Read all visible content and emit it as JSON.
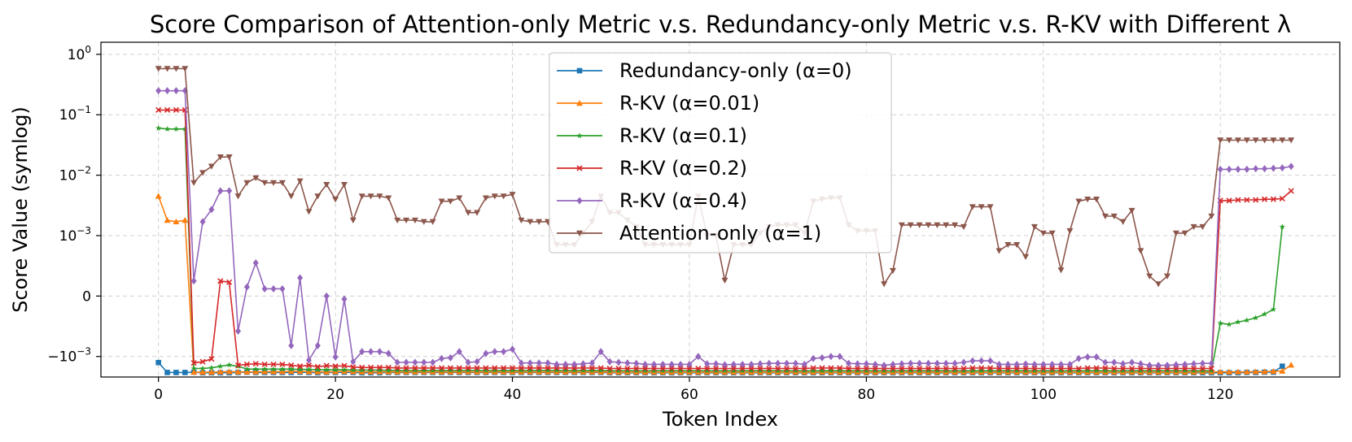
{
  "chart_data": {
    "type": "line",
    "title": "Score Comparison of Attention-only Metric v.s. Redundancy-only Metric v.s. R-KV with Different λ",
    "xlabel": "Token Index",
    "ylabel": "Score Value (symlog)",
    "yscale": "symlog",
    "linthresh": 0.001,
    "xlim": [
      -6.5,
      133.5
    ],
    "x_ticks": [
      0,
      20,
      40,
      60,
      80,
      100,
      120
    ],
    "y_ticks": [
      {
        "value": 1,
        "label": "10",
        "exp": "0"
      },
      {
        "value": 0.1,
        "label": "10",
        "exp": "−1"
      },
      {
        "value": 0.01,
        "label": "10",
        "exp": "−2"
      },
      {
        "value": 0.001,
        "label": "10",
        "exp": "−3"
      },
      {
        "value": 0,
        "label": "0",
        "exp": ""
      },
      {
        "value": -0.001,
        "label": "−10",
        "exp": "−3"
      }
    ],
    "grid": true,
    "legend_position": "top-center",
    "series": [
      {
        "name": "Redundancy-only (α=0)",
        "color": "#1f77b4",
        "marker": "square",
        "values": [
          -0.00126,
          -0.00184,
          -0.00184,
          -0.00184,
          -0.00182,
          -0.00186,
          -0.00186,
          -0.00186,
          -0.00186,
          -0.00184,
          -0.00182,
          -0.00184,
          -0.00184,
          -0.00184,
          -0.00184,
          -0.00184,
          -0.00182,
          -0.00184,
          -0.00186,
          -0.00184,
          -0.00184,
          -0.00182,
          -0.00184,
          -0.00186,
          -0.00186,
          -0.00186,
          -0.00184,
          -0.00184,
          -0.00184,
          -0.00184,
          -0.00184,
          -0.00184,
          -0.00184,
          -0.00184,
          -0.00184,
          -0.00184,
          -0.00184,
          -0.00184,
          -0.00184,
          -0.00184,
          -0.00184,
          -0.00184,
          -0.00184,
          -0.00184,
          -0.00184,
          -0.00184,
          -0.00184,
          -0.00184,
          -0.00184,
          -0.00184,
          -0.00184,
          -0.00186,
          -0.00186,
          -0.00186,
          -0.00186,
          -0.00186,
          -0.00186,
          -0.00186,
          -0.00186,
          -0.00186,
          -0.00186,
          -0.00186,
          -0.00186,
          -0.00186,
          -0.00186,
          -0.00186,
          -0.00186,
          -0.00186,
          -0.00186,
          -0.00186,
          -0.00186,
          -0.00186,
          -0.00186,
          -0.00186,
          -0.00186,
          -0.00186,
          -0.00186,
          -0.00186,
          -0.00186,
          -0.00186,
          -0.00186,
          -0.00186,
          -0.00186,
          -0.00186,
          -0.00186,
          -0.00186,
          -0.00186,
          -0.00186,
          -0.00186,
          -0.00186,
          -0.00186,
          -0.00186,
          -0.00186,
          -0.00186,
          -0.00186,
          -0.00186,
          -0.00186,
          -0.00186,
          -0.00186,
          -0.00186,
          -0.00186,
          -0.00186,
          -0.00186,
          -0.00186,
          -0.00186,
          -0.00186,
          -0.00186,
          -0.00186,
          -0.00186,
          -0.00186,
          -0.00186,
          -0.00186,
          -0.00186,
          -0.00186,
          -0.00186,
          -0.00186,
          -0.00186,
          -0.00186,
          -0.00186,
          -0.00186,
          -0.00186,
          -0.00186,
          -0.00186,
          -0.00184,
          -0.00184,
          -0.00182,
          -0.00182,
          -0.00145
        ]
      },
      {
        "name": "R-KV (α=0.01)",
        "color": "#ff7f0e",
        "marker": "triangle-up",
        "values": [
          0.0045,
          0.0018,
          0.0017,
          0.0018,
          -0.00182,
          -0.00182,
          -0.00182,
          -0.0018,
          -0.00178,
          -0.0018,
          -0.0018,
          -0.0018,
          -0.00178,
          -0.00178,
          -0.00178,
          -0.00176,
          -0.00176,
          -0.00178,
          -0.0018,
          -0.0018,
          -0.00178,
          -0.00176,
          -0.00178,
          -0.0018,
          -0.0018,
          -0.0018,
          -0.0018,
          -0.0018,
          -0.0018,
          -0.0018,
          -0.0018,
          -0.0018,
          -0.0018,
          -0.0018,
          -0.0018,
          -0.0018,
          -0.0018,
          -0.0018,
          -0.0018,
          -0.0018,
          -0.0018,
          -0.0018,
          -0.0018,
          -0.0018,
          -0.0018,
          -0.0018,
          -0.0018,
          -0.0018,
          -0.0018,
          -0.0018,
          -0.0018,
          -0.00182,
          -0.00182,
          -0.00182,
          -0.00182,
          -0.00182,
          -0.00182,
          -0.00182,
          -0.00182,
          -0.00182,
          -0.00182,
          -0.00182,
          -0.00182,
          -0.00182,
          -0.00182,
          -0.00182,
          -0.00182,
          -0.00182,
          -0.00182,
          -0.00182,
          -0.00182,
          -0.00182,
          -0.00182,
          -0.00182,
          -0.00182,
          -0.00182,
          -0.00182,
          -0.00182,
          -0.00182,
          -0.00182,
          -0.00182,
          -0.00182,
          -0.00182,
          -0.00182,
          -0.00182,
          -0.00182,
          -0.00182,
          -0.00182,
          -0.00182,
          -0.00182,
          -0.00182,
          -0.00182,
          -0.00182,
          -0.00182,
          -0.00182,
          -0.00182,
          -0.00182,
          -0.00182,
          -0.00182,
          -0.00182,
          -0.00182,
          -0.00182,
          -0.00182,
          -0.00182,
          -0.00182,
          -0.00182,
          -0.00182,
          -0.00182,
          -0.00182,
          -0.00182,
          -0.00182,
          -0.00182,
          -0.00182,
          -0.00182,
          -0.00182,
          -0.00182,
          -0.00182,
          -0.00182,
          -0.0018,
          -0.0018,
          -0.0018,
          -0.0018,
          -0.0018,
          -0.0018,
          -0.00178,
          -0.00178,
          -0.00176,
          -0.00174,
          -0.00138
        ]
      },
      {
        "name": "R-KV (α=0.1)",
        "color": "#2ca02c",
        "marker": "star",
        "values": [
          0.06,
          0.058,
          0.058,
          0.058,
          -0.00158,
          -0.00158,
          -0.00154,
          -0.00145,
          -0.00138,
          -0.00145,
          -0.00162,
          -0.00162,
          -0.00162,
          -0.00162,
          -0.00162,
          -0.00162,
          -0.00164,
          -0.00164,
          -0.00166,
          -0.00166,
          -0.00166,
          -0.00166,
          -0.00168,
          -0.00168,
          -0.00168,
          -0.00168,
          -0.0017,
          -0.0017,
          -0.0017,
          -0.0017,
          -0.0017,
          -0.0017,
          -0.0017,
          -0.0017,
          -0.0017,
          -0.0017,
          -0.0017,
          -0.0017,
          -0.0017,
          -0.0017,
          -0.0017,
          -0.0017,
          -0.0017,
          -0.0017,
          -0.0017,
          -0.0017,
          -0.0017,
          -0.0017,
          -0.0017,
          -0.0017,
          -0.0017,
          -0.00172,
          -0.00172,
          -0.00172,
          -0.00172,
          -0.00172,
          -0.00172,
          -0.00172,
          -0.00172,
          -0.00172,
          -0.00172,
          -0.00172,
          -0.00172,
          -0.00172,
          -0.00172,
          -0.00172,
          -0.00172,
          -0.00172,
          -0.00172,
          -0.00172,
          -0.00172,
          -0.00172,
          -0.00172,
          -0.00172,
          -0.00172,
          -0.00172,
          -0.00172,
          -0.00172,
          -0.00172,
          -0.00172,
          -0.00172,
          -0.00172,
          -0.00172,
          -0.00172,
          -0.00172,
          -0.00172,
          -0.00172,
          -0.00172,
          -0.00172,
          -0.00172,
          -0.00172,
          -0.00172,
          -0.00172,
          -0.00172,
          -0.00172,
          -0.00172,
          -0.00172,
          -0.00172,
          -0.00172,
          -0.00172,
          -0.00172,
          -0.00172,
          -0.00172,
          -0.00172,
          -0.00172,
          -0.00172,
          -0.00172,
          -0.00172,
          -0.00172,
          -0.00172,
          -0.00172,
          -0.00172,
          -0.00172,
          -0.00172,
          -0.00172,
          -0.00172,
          -0.00172,
          -0.00172,
          -0.00172,
          -0.00172,
          -0.00045,
          -0.00047,
          -0.00043,
          -0.0004,
          -0.00036,
          -0.0003,
          -0.00022,
          0.0014
        ]
      },
      {
        "name": "R-KV (α=0.2)",
        "color": "#d62728",
        "marker": "x",
        "values": [
          0.12,
          0.12,
          0.12,
          0.12,
          -0.00128,
          -0.00122,
          -0.0011,
          0.00025,
          0.00023,
          -0.0014,
          -0.00135,
          -0.00132,
          -0.00135,
          -0.00135,
          -0.00135,
          -0.0014,
          -0.00145,
          -0.0014,
          -0.00148,
          -0.00142,
          -0.00145,
          -0.00142,
          -0.0015,
          -0.00152,
          -0.00152,
          -0.00152,
          -0.00152,
          -0.00155,
          -0.00155,
          -0.00155,
          -0.00155,
          -0.00155,
          -0.00155,
          -0.00155,
          -0.00155,
          -0.00155,
          -0.00155,
          -0.00155,
          -0.00155,
          -0.00155,
          -0.00155,
          -0.00155,
          -0.00155,
          -0.00155,
          -0.00155,
          -0.00155,
          -0.00155,
          -0.00155,
          -0.00155,
          -0.00155,
          -0.00155,
          -0.00158,
          -0.00158,
          -0.00158,
          -0.00158,
          -0.00158,
          -0.00158,
          -0.00158,
          -0.00158,
          -0.00158,
          -0.00158,
          -0.00158,
          -0.00158,
          -0.00158,
          -0.00158,
          -0.00158,
          -0.00158,
          -0.00158,
          -0.00158,
          -0.00158,
          -0.00158,
          -0.00158,
          -0.00158,
          -0.00158,
          -0.00155,
          -0.00155,
          -0.00155,
          -0.00155,
          -0.00158,
          -0.00158,
          -0.00158,
          -0.00158,
          -0.00158,
          -0.00158,
          -0.00158,
          -0.00158,
          -0.00158,
          -0.00158,
          -0.00158,
          -0.00158,
          -0.00158,
          -0.00158,
          -0.00155,
          -0.00155,
          -0.00155,
          -0.00158,
          -0.00158,
          -0.00158,
          -0.00158,
          -0.00158,
          -0.00158,
          -0.00158,
          -0.00158,
          -0.00158,
          -0.00158,
          -0.00155,
          -0.00155,
          -0.00155,
          -0.00158,
          -0.00158,
          -0.00158,
          -0.00158,
          -0.00158,
          -0.00158,
          -0.00158,
          -0.00158,
          -0.00158,
          -0.00158,
          -0.00158,
          -0.00158,
          0.0038,
          0.0038,
          0.0039,
          0.0039,
          0.0039,
          0.004,
          0.004,
          0.0041,
          0.0055
        ]
      },
      {
        "name": "R-KV (α=0.4)",
        "color": "#9467bd",
        "marker": "diamond",
        "values": [
          0.25,
          0.25,
          0.25,
          0.25,
          0.00025,
          0.0017,
          0.0027,
          0.0055,
          0.0055,
          -0.00058,
          0.00015,
          0.00055,
          0.00012,
          0.00012,
          0.00012,
          -0.00082,
          0.0003,
          -0.00115,
          -0.00082,
          0.0,
          -0.00102,
          -5e-05,
          -0.00122,
          -0.00092,
          -0.00092,
          -0.00092,
          -0.00095,
          -0.00125,
          -0.00125,
          -0.00125,
          -0.00125,
          -0.00125,
          -0.00108,
          -0.00105,
          -0.00092,
          -0.00125,
          -0.00122,
          -0.00095,
          -0.00092,
          -0.00092,
          -0.00088,
          -0.00128,
          -0.00128,
          -0.00128,
          -0.00128,
          -0.00135,
          -0.00135,
          -0.00135,
          -0.00132,
          -0.00128,
          -0.00092,
          -0.00122,
          -0.00125,
          -0.00128,
          -0.0013,
          -0.00135,
          -0.00135,
          -0.00135,
          -0.00135,
          -0.00135,
          -0.00135,
          -0.001,
          -0.00132,
          -0.00132,
          -0.00137,
          -0.00135,
          -0.00135,
          -0.00135,
          -0.00132,
          -0.0013,
          -0.0013,
          -0.0013,
          -0.0013,
          -0.00135,
          -0.00108,
          -0.00105,
          -0.001,
          -0.001,
          -0.0013,
          -0.00132,
          -0.00132,
          -0.00135,
          -0.0014,
          -0.00135,
          -0.00132,
          -0.0013,
          -0.0013,
          -0.0013,
          -0.0013,
          -0.0013,
          -0.0013,
          -0.00125,
          -0.00118,
          -0.00118,
          -0.00118,
          -0.00135,
          -0.00135,
          -0.00135,
          -0.00133,
          -0.00135,
          -0.00135,
          -0.00135,
          -0.00135,
          -0.00135,
          -0.00108,
          -0.00102,
          -0.00102,
          -0.00125,
          -0.00125,
          -0.00132,
          -0.00125,
          -0.00132,
          -0.0014,
          -0.0014,
          -0.0014,
          -0.00137,
          -0.00135,
          -0.00132,
          -0.0013,
          -0.0013,
          0.0125,
          0.0125,
          0.0125,
          0.0125,
          0.0128,
          0.0128,
          0.013,
          0.0132,
          0.014
        ]
      },
      {
        "name": "Attention-only (α=1)",
        "color": "#8c564b",
        "marker": "triangle-down",
        "values": [
          0.58,
          0.58,
          0.58,
          0.58,
          0.0075,
          0.011,
          0.014,
          0.02,
          0.02,
          0.0045,
          0.0075,
          0.009,
          0.0075,
          0.0075,
          0.0075,
          0.0045,
          0.008,
          0.0025,
          0.0045,
          0.007,
          0.004,
          0.007,
          0.0018,
          0.0045,
          0.0045,
          0.0045,
          0.0042,
          0.0018,
          0.0018,
          0.0018,
          0.0017,
          0.0017,
          0.0037,
          0.0037,
          0.0042,
          0.0024,
          0.0024,
          0.0042,
          0.0045,
          0.0045,
          0.0048,
          0.0018,
          0.0017,
          0.0017,
          0.0017,
          0.00085,
          0.00085,
          0.00085,
          0.0011,
          0.0017,
          0.0045,
          0.0024,
          0.0024,
          0.0018,
          0.0014,
          0.00085,
          0.00085,
          0.00085,
          0.00085,
          0.00085,
          0.00085,
          0.0045,
          0.001,
          0.001,
          0.00026,
          0.00085,
          0.00085,
          0.00085,
          0.0011,
          0.0014,
          0.0015,
          0.0015,
          0.0015,
          0.0011,
          0.0037,
          0.004,
          0.0042,
          0.0042,
          0.0015,
          0.0012,
          0.0012,
          0.0012,
          0.0002,
          0.00042,
          0.0015,
          0.0015,
          0.0015,
          0.0015,
          0.0015,
          0.0015,
          0.0015,
          0.0014,
          0.003,
          0.003,
          0.003,
          0.00075,
          0.00085,
          0.00085,
          0.00065,
          0.0014,
          0.0011,
          0.0011,
          0.00043,
          0.0012,
          0.0037,
          0.004,
          0.004,
          0.0021,
          0.0021,
          0.0017,
          0.0026,
          0.00075,
          0.00033,
          0.0002,
          0.00033,
          0.0011,
          0.0011,
          0.0014,
          0.0014,
          0.0021,
          0.038,
          0.038,
          0.038,
          0.038,
          0.038,
          0.038,
          0.038,
          0.038,
          0.038
        ]
      }
    ]
  }
}
